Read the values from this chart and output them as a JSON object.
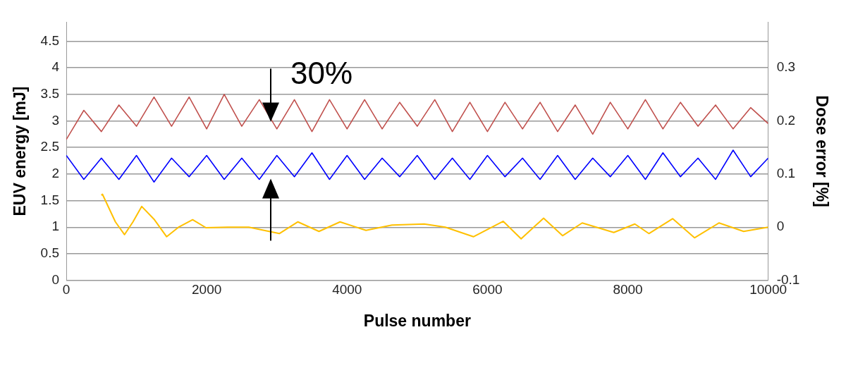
{
  "chart_data": {
    "type": "line",
    "xlabel": "Pulse number",
    "ylabel": "EUV energy [mJ]",
    "y2label": "Dose error [%]",
    "annotations": [
      "30%"
    ],
    "xlim": [
      0,
      10000
    ],
    "xticks": [
      0,
      2000,
      4000,
      6000,
      8000,
      10000
    ],
    "ylim": [
      0,
      4.86
    ],
    "yticks": [
      0,
      0.5,
      1,
      1.5,
      2,
      2.5,
      3,
      3.5,
      4,
      4.5
    ],
    "y2lim": [
      -0.1,
      0.386
    ],
    "y2ticks": [
      -0.1,
      0,
      0.1,
      0.2,
      0.3
    ],
    "grid": "y",
    "marker": "none",
    "line_style": "solid",
    "series": [
      {
        "color": "#c0504d",
        "x": [
          0,
          250,
          500,
          750,
          1000,
          1250,
          1500,
          1750,
          2000,
          2250,
          2500,
          2750,
          3000,
          3250,
          3500,
          3750,
          4000,
          4250,
          4500,
          4750,
          5000,
          5250,
          5500,
          5750,
          6000,
          6250,
          6500,
          6750,
          7000,
          7250,
          7500,
          7750,
          8000,
          8250,
          8500,
          8750,
          9000,
          9250,
          9500,
          9750,
          10000
        ],
        "values": [
          2.65,
          3.2,
          2.8,
          3.3,
          2.9,
          3.45,
          2.9,
          3.45,
          2.85,
          3.5,
          2.9,
          3.4,
          2.85,
          3.4,
          2.8,
          3.4,
          2.85,
          3.4,
          2.85,
          3.35,
          2.9,
          3.4,
          2.8,
          3.35,
          2.8,
          3.35,
          2.85,
          3.35,
          2.8,
          3.3,
          2.75,
          3.35,
          2.85,
          3.4,
          2.85,
          3.35,
          2.9,
          3.3,
          2.85,
          3.25,
          2.95
        ]
      },
      {
        "color": "#0000ff",
        "x": [
          0,
          250,
          500,
          750,
          1000,
          1250,
          1500,
          1750,
          2000,
          2250,
          2500,
          2750,
          3000,
          3250,
          3500,
          3750,
          4000,
          4250,
          4500,
          4750,
          5000,
          5250,
          5500,
          5750,
          6000,
          6250,
          6500,
          6750,
          7000,
          7250,
          7500,
          7750,
          8000,
          8250,
          8500,
          8750,
          9000,
          9250,
          9500,
          9750,
          10000
        ],
        "values": [
          2.35,
          1.9,
          2.3,
          1.9,
          2.35,
          1.85,
          2.3,
          1.95,
          2.35,
          1.9,
          2.3,
          1.9,
          2.35,
          1.95,
          2.4,
          1.9,
          2.35,
          1.9,
          2.3,
          1.95,
          2.35,
          1.9,
          2.3,
          1.9,
          2.35,
          1.95,
          2.3,
          1.9,
          2.35,
          1.9,
          2.3,
          1.95,
          2.35,
          1.9,
          2.4,
          1.95,
          2.3,
          1.9,
          2.45,
          1.95,
          2.3
        ]
      },
      {
        "color": "#ffc000",
        "axis": "y2",
        "x": [
          500,
          515,
          700,
          830,
          950,
          1075,
          1250,
          1430,
          1600,
          1800,
          1990,
          2300,
          2600,
          3035,
          3300,
          3600,
          3900,
          4270,
          4640,
          5100,
          5400,
          5800,
          6225,
          6480,
          6800,
          7070,
          7350,
          7800,
          8100,
          8300,
          8640,
          8950,
          9300,
          9650,
          10000
        ],
        "values": [
          0.06,
          0.062,
          0.01,
          -0.014,
          0.01,
          0.039,
          0.015,
          -0.018,
          0.0,
          0.014,
          -0.001,
          0.0,
          0.0,
          -0.012,
          0.01,
          -0.008,
          0.01,
          -0.006,
          0.004,
          0.006,
          0.0,
          -0.018,
          0.011,
          -0.022,
          0.017,
          -0.016,
          0.008,
          -0.01,
          0.006,
          -0.012,
          0.016,
          -0.02,
          0.008,
          -0.008,
          0.0
        ]
      }
    ]
  }
}
